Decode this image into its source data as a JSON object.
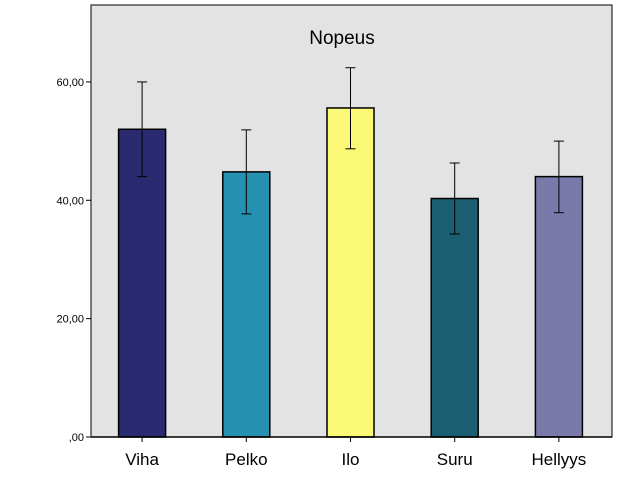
{
  "chart_data": {
    "type": "bar",
    "title": "Nopeus",
    "xlabel": "",
    "ylabel": "",
    "ylim": [
      0,
      73
    ],
    "yticks": [
      0,
      20,
      40,
      60
    ],
    "ytick_labels": [
      ",00",
      "20,00",
      "40,00",
      "60,00"
    ],
    "categories": [
      "Viha",
      "Pelko",
      "Ilo",
      "Suru",
      "Hellyys"
    ],
    "values": [
      52,
      44.8,
      55.6,
      40.3,
      44
    ],
    "error_low": [
      44,
      37.7,
      48.7,
      34.3,
      37.9
    ],
    "error_high": [
      60,
      51.9,
      62.4,
      46.3,
      50
    ],
    "colors": [
      "#2a2a70",
      "#2690b0",
      "#fbf877",
      "#1c5f73",
      "#7a7aaa"
    ],
    "background": "#e3e3e3",
    "grid": false,
    "legend": "none"
  }
}
